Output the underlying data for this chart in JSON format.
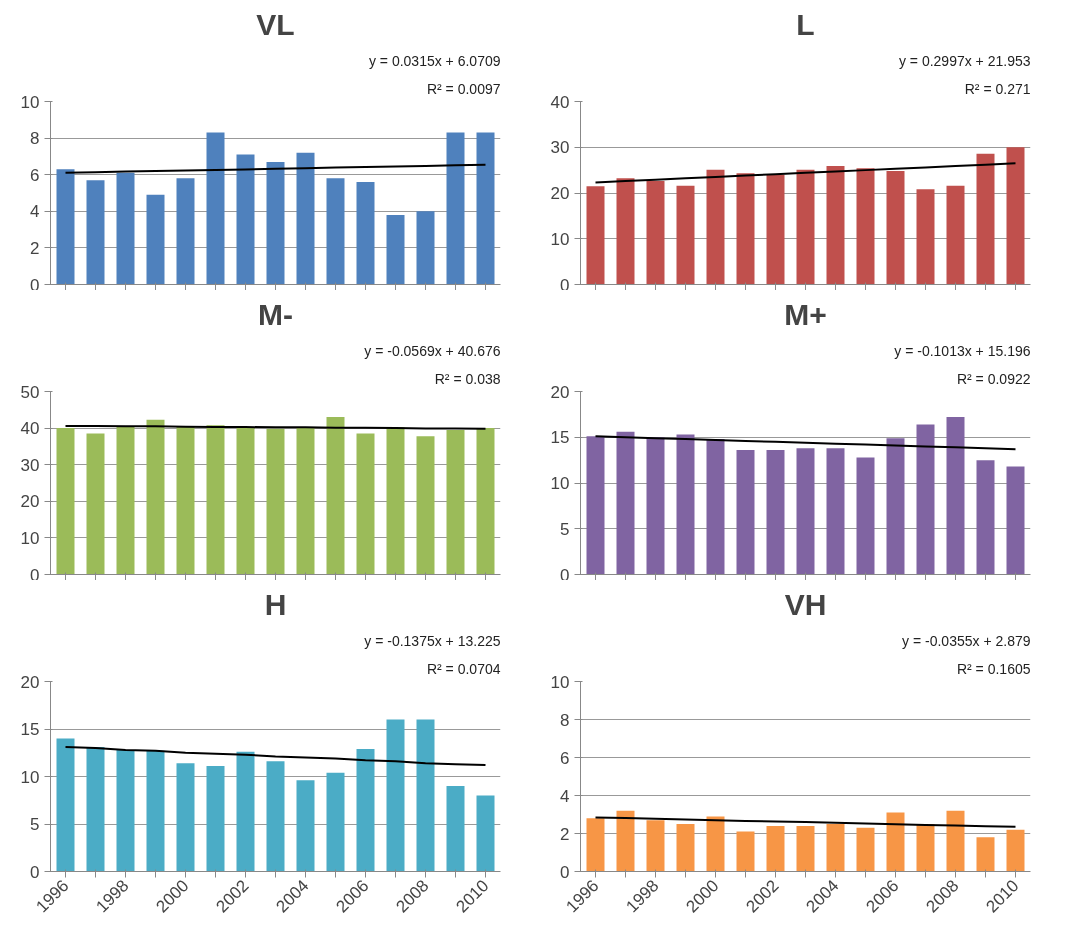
{
  "chart_data": [
    {
      "type": "bar",
      "title": "VL",
      "annotations": [
        "y = 0.0315x + 6.0709",
        "R² = 0.0097"
      ],
      "categories": [
        null,
        null,
        null,
        null,
        null,
        null,
        null,
        null,
        null,
        null,
        null,
        null,
        null,
        null,
        null
      ],
      "tick_labels": "y",
      "grid": "y",
      "ylim": [
        0,
        10
      ],
      "yticks": [
        0,
        2,
        4,
        6,
        8,
        10
      ],
      "series": [
        {
          "color": "#4f81bd",
          "values": [
            6.3,
            5.7,
            6.1,
            4.9,
            5.8,
            8.3,
            7.1,
            6.7,
            7.2,
            5.8,
            5.6,
            3.8,
            4.0,
            8.3,
            8.3
          ]
        },
        {
          "type": "line",
          "color": "#000000",
          "values": [
            6.1,
            6.13,
            6.17,
            6.2,
            6.23,
            6.26,
            6.29,
            6.32,
            6.35,
            6.39,
            6.42,
            6.45,
            6.48,
            6.51,
            6.54
          ]
        }
      ]
    },
    {
      "type": "bar",
      "title": "L",
      "annotations": [
        "y = 0.2997x + 21.953",
        "R² = 0.271"
      ],
      "categories": [
        null,
        null,
        null,
        null,
        null,
        null,
        null,
        null,
        null,
        null,
        null,
        null,
        null,
        null,
        null
      ],
      "tick_labels": "y",
      "grid": "y",
      "ylim": [
        0,
        40
      ],
      "yticks": [
        0,
        10,
        20,
        30,
        40
      ],
      "series": [
        {
          "color": "#c0504d",
          "values": [
            21.5,
            23.2,
            22.6,
            21.6,
            25.1,
            24.3,
            24.0,
            25.1,
            25.9,
            25.4,
            24.8,
            20.8,
            21.6,
            28.6,
            30.0
          ]
        },
        {
          "type": "line",
          "color": "#000000",
          "values": [
            22.3,
            22.6,
            22.9,
            23.2,
            23.5,
            23.8,
            24.1,
            24.4,
            24.7,
            25.0,
            25.3,
            25.6,
            25.9,
            26.2,
            26.5
          ]
        }
      ]
    },
    {
      "type": "bar",
      "title": "M-",
      "annotations": [
        "y = -0.0569x + 40.676",
        "R² = 0.038"
      ],
      "categories": [
        null,
        null,
        null,
        null,
        null,
        null,
        null,
        null,
        null,
        null,
        null,
        null,
        null,
        null,
        null
      ],
      "tick_labels": "y",
      "grid": "y",
      "ylim": [
        0,
        50
      ],
      "yticks": [
        0,
        10,
        20,
        30,
        40,
        50
      ],
      "series": [
        {
          "color": "#9bbb59",
          "values": [
            40.0,
            38.5,
            40.5,
            42.3,
            40.5,
            40.8,
            40.0,
            39.8,
            40.0,
            43.0,
            38.5,
            40.2,
            37.8,
            39.5,
            40.0
          ]
        },
        {
          "type": "line",
          "color": "#000000",
          "values": [
            40.6,
            40.6,
            40.5,
            40.5,
            40.4,
            40.3,
            40.3,
            40.2,
            40.2,
            40.1,
            40.1,
            40.0,
            39.9,
            39.9,
            39.8
          ]
        }
      ]
    },
    {
      "type": "bar",
      "title": "M+",
      "annotations": [
        "y = -0.1013x + 15.196",
        "R² = 0.0922"
      ],
      "categories": [
        null,
        null,
        null,
        null,
        null,
        null,
        null,
        null,
        null,
        null,
        null,
        null,
        null,
        null,
        null
      ],
      "tick_labels": "y",
      "grid": "y",
      "ylim": [
        0,
        20
      ],
      "yticks": [
        0,
        5,
        10,
        15,
        20
      ],
      "series": [
        {
          "color": "#8064a2",
          "values": [
            15.1,
            15.6,
            15.0,
            15.3,
            14.8,
            13.6,
            13.6,
            13.8,
            13.8,
            12.8,
            14.9,
            16.4,
            17.2,
            12.5,
            11.8
          ]
        },
        {
          "type": "line",
          "color": "#000000",
          "values": [
            15.1,
            15.0,
            14.9,
            14.8,
            14.7,
            14.6,
            14.5,
            14.4,
            14.3,
            14.2,
            14.1,
            14.0,
            13.9,
            13.8,
            13.7
          ]
        }
      ]
    },
    {
      "type": "bar",
      "title": "H",
      "annotations": [
        "y = -0.1375x + 13.225",
        "R² = 0.0704"
      ],
      "categories": [
        "1996",
        null,
        "1998",
        null,
        "2000",
        null,
        "2002",
        null,
        "2004",
        null,
        "2006",
        null,
        "2008",
        null,
        "2010"
      ],
      "grid": "y",
      "ylim": [
        0,
        20
      ],
      "yticks": [
        0,
        5,
        10,
        15,
        20
      ],
      "series": [
        {
          "color": "#4bacc6",
          "values": [
            14.0,
            13.1,
            12.8,
            12.7,
            11.4,
            11.1,
            12.6,
            11.6,
            9.6,
            10.4,
            12.9,
            16.0,
            16.0,
            9.0,
            8.0
          ]
        },
        {
          "type": "line",
          "color": "#000000",
          "values": [
            13.1,
            13.0,
            12.8,
            12.7,
            12.5,
            12.4,
            12.3,
            12.1,
            12.0,
            11.9,
            11.7,
            11.6,
            11.4,
            11.3,
            11.2
          ]
        }
      ]
    },
    {
      "type": "bar",
      "title": "VH",
      "annotations": [
        "y = -0.0355x + 2.879",
        "R² = 0.1605"
      ],
      "categories": [
        "1996",
        null,
        "1998",
        null,
        "2000",
        null,
        "2002",
        null,
        "2004",
        null,
        "2006",
        null,
        "2008",
        null,
        "2010"
      ],
      "grid": "y",
      "ylim": [
        0,
        10
      ],
      "yticks": [
        0,
        2,
        4,
        6,
        8,
        10
      ],
      "series": [
        {
          "color": "#f79646",
          "values": [
            2.8,
            3.2,
            2.7,
            2.5,
            2.9,
            2.1,
            2.4,
            2.4,
            2.5,
            2.3,
            3.1,
            2.5,
            3.2,
            1.8,
            2.2
          ]
        },
        {
          "type": "line",
          "color": "#000000",
          "values": [
            2.84,
            2.81,
            2.77,
            2.74,
            2.7,
            2.66,
            2.63,
            2.6,
            2.56,
            2.52,
            2.49,
            2.45,
            2.42,
            2.38,
            2.35
          ]
        }
      ]
    }
  ]
}
